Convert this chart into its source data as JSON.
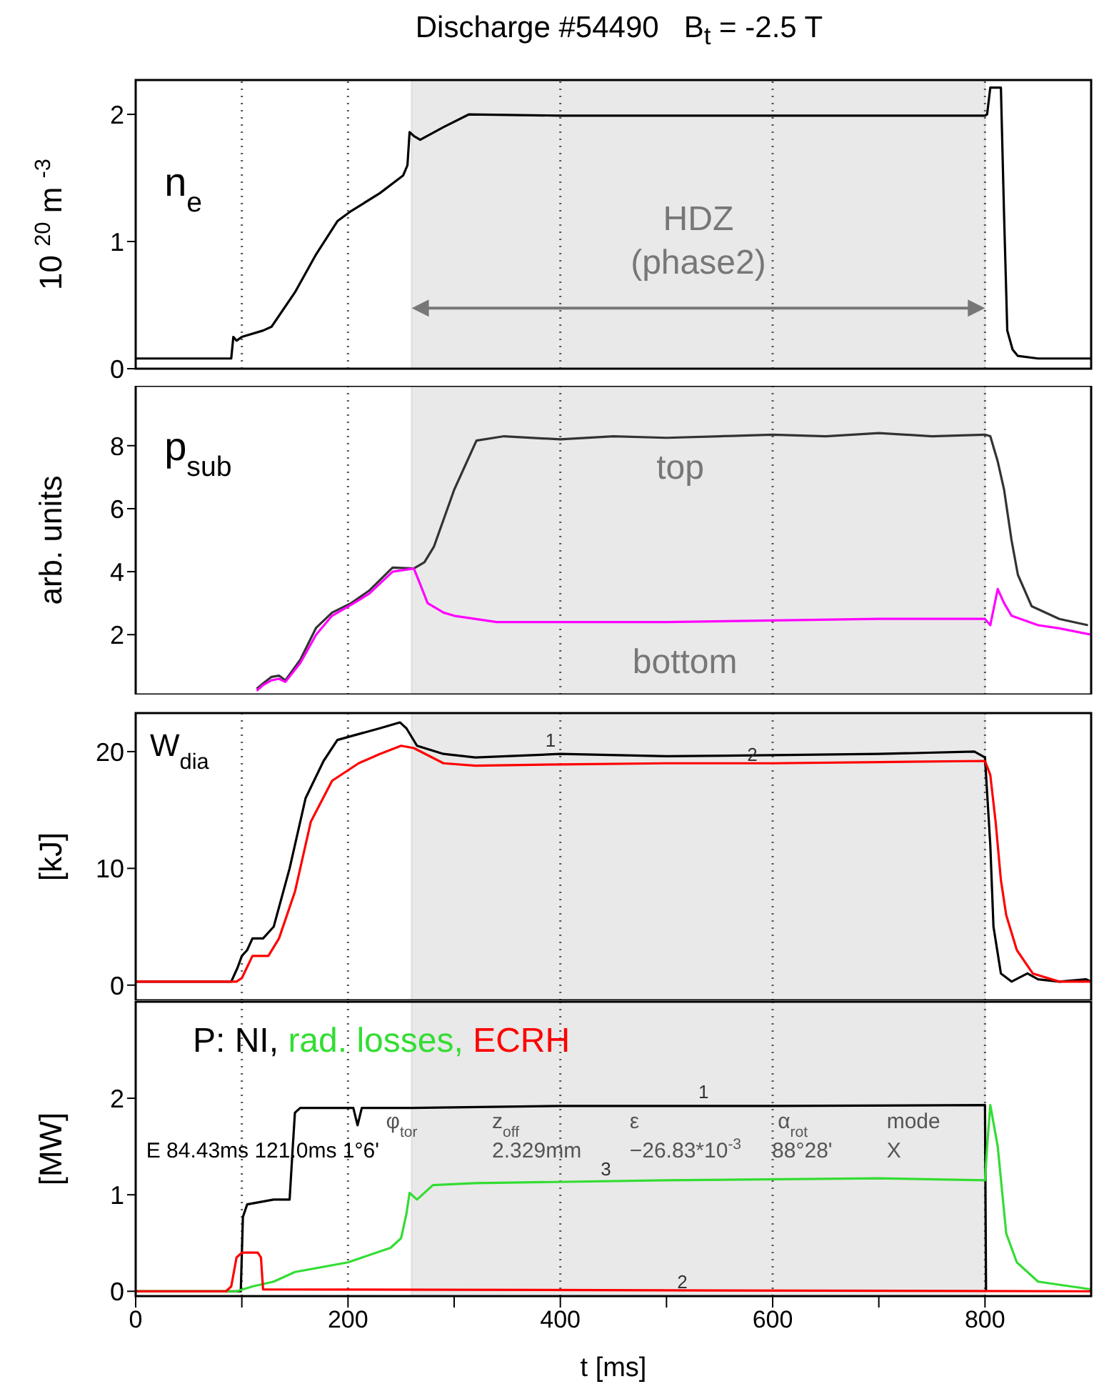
{
  "chart_data": [
    {
      "type": "line",
      "title": "Discharge #54490   B$_{t}$ = -2.5 T",
      "annotations": [
        "n$_{e}$"
      ],
      "ylabel": "10 $^{20}$ m $^{-3}$",
      "xlim": [
        0,
        900
      ],
      "ylim": [
        0,
        2.27
      ],
      "yticks": [
        0,
        1,
        2
      ],
      "tick_labels": "y",
      "series": [
        {
          "color": "#000000",
          "x": [
            0,
            50,
            90,
            92,
            95,
            100,
            120,
            128,
            150,
            170,
            190,
            203,
            230,
            252,
            256,
            258,
            262,
            268,
            290,
            314,
            400,
            500,
            600,
            700,
            800,
            802,
            805,
            815,
            818,
            821,
            826,
            831,
            850,
            900
          ],
          "values": [
            0.08,
            0.08,
            0.08,
            0.25,
            0.22,
            0.25,
            0.3,
            0.33,
            0.6,
            0.9,
            1.16,
            1.24,
            1.38,
            1.52,
            1.6,
            1.86,
            1.83,
            1.8,
            1.9,
            2.0,
            1.99,
            1.99,
            1.99,
            1.99,
            1.99,
            2.0,
            2.21,
            2.21,
            1.2,
            0.3,
            0.15,
            0.1,
            0.08,
            0.08
          ]
        }
      ],
      "bands": [
        {
          "axis": "x",
          "from": 260,
          "to": 800,
          "label": "HDZ (phase2)",
          "color": "#e9e9e9"
        }
      ],
      "ref_lines": [
        {
          "axis": "x",
          "value": 100,
          "line_style": "dotted"
        },
        {
          "axis": "x",
          "value": 200,
          "line_style": "dotted"
        },
        {
          "axis": "x",
          "value": 400,
          "line_style": "dotted"
        },
        {
          "axis": "x",
          "value": 600,
          "line_style": "dotted"
        },
        {
          "axis": "x",
          "value": 800,
          "line_style": "dotted"
        }
      ]
    },
    {
      "type": "line",
      "ylabel": "arb. units",
      "xlim": [
        0,
        900
      ],
      "ylim": [
        0.1,
        9.9
      ],
      "yticks": [
        2,
        4,
        6,
        8
      ],
      "tick_labels": "y",
      "series": [
        {
          "color": "#333333",
          "x": [
            114,
            120,
            128,
            135,
            141,
            155,
            170,
            185,
            203,
            220,
            242,
            262,
            272,
            281,
            300,
            321,
            347,
            400,
            450,
            500,
            550,
            600,
            650,
            700,
            750,
            800,
            805,
            812,
            818,
            825,
            831,
            844,
            870,
            897
          ],
          "values": [
            0.28,
            0.45,
            0.66,
            0.7,
            0.55,
            1.2,
            2.22,
            2.7,
            3.0,
            3.4,
            4.13,
            4.1,
            4.3,
            4.8,
            6.6,
            8.16,
            8.3,
            8.2,
            8.3,
            8.25,
            8.3,
            8.35,
            8.3,
            8.4,
            8.3,
            8.35,
            8.3,
            7.5,
            6.6,
            5.0,
            3.9,
            2.9,
            2.5,
            2.3
          ]
        },
        {
          "color": "#ff00ff",
          "x": [
            114,
            120,
            128,
            135,
            141,
            155,
            170,
            185,
            203,
            220,
            242,
            262,
            268,
            275,
            290,
            300,
            340,
            400,
            500,
            600,
            700,
            800,
            805,
            812,
            818,
            825,
            850,
            870,
            900
          ],
          "values": [
            0.22,
            0.4,
            0.55,
            0.6,
            0.5,
            1.1,
            2.0,
            2.6,
            2.95,
            3.3,
            4.0,
            4.1,
            3.6,
            3.0,
            2.7,
            2.6,
            2.4,
            2.4,
            2.4,
            2.45,
            2.5,
            2.5,
            2.3,
            3.45,
            3.0,
            2.6,
            2.3,
            2.2,
            2.0
          ]
        }
      ],
      "annotations": [
        "p$_{sub}$",
        "top",
        "bottom"
      ],
      "bands": [
        {
          "axis": "x",
          "from": 260,
          "to": 800,
          "color": "#e9e9e9"
        }
      ],
      "ref_lines": [
        {
          "axis": "x",
          "value": 200,
          "line_style": "dotted"
        },
        {
          "axis": "x",
          "value": 400,
          "line_style": "dotted"
        },
        {
          "axis": "x",
          "value": 600,
          "line_style": "dotted"
        },
        {
          "axis": "x",
          "value": 800,
          "line_style": "dotted"
        }
      ]
    },
    {
      "type": "line",
      "ylabel": "[kJ]",
      "xlim": [
        0,
        900
      ],
      "ylim": [
        -1.3,
        23.3
      ],
      "yticks": [
        0,
        10,
        20
      ],
      "tick_labels": "y",
      "series": [
        {
          "color": "#000000",
          "x": [
            0,
            50,
            90,
            96,
            100,
            105,
            110,
            120,
            130,
            145,
            160,
            177,
            190,
            210,
            230,
            249,
            255,
            265,
            290,
            320,
            400,
            500,
            600,
            700,
            790,
            800,
            805,
            808,
            815,
            825,
            840,
            850,
            870,
            895,
            900
          ],
          "values": [
            0.3,
            0.3,
            0.3,
            1.5,
            2.5,
            3,
            4,
            4,
            5,
            10,
            16,
            19.2,
            21,
            21.5,
            22,
            22.5,
            22,
            20.5,
            19.8,
            19.5,
            19.8,
            19.6,
            19.7,
            19.8,
            20,
            19.5,
            12,
            5,
            1,
            0.3,
            1,
            0.5,
            0.3,
            0.5,
            0.3
          ]
        },
        {
          "color": "#ff0000",
          "x": [
            0,
            50,
            95,
            100,
            110,
            125,
            135,
            150,
            165,
            185,
            210,
            230,
            250,
            262,
            290,
            320,
            400,
            500,
            600,
            700,
            800,
            805,
            810,
            815,
            820,
            830,
            845,
            870,
            900
          ],
          "values": [
            0.3,
            0.3,
            0.3,
            0.6,
            2.5,
            2.5,
            4,
            8,
            14,
            17.5,
            19,
            19.8,
            20.5,
            20.3,
            19,
            18.8,
            18.9,
            19,
            19,
            19.1,
            19.2,
            18,
            14,
            9,
            6,
            3,
            1,
            0.3,
            0.3
          ]
        }
      ],
      "annotations": [
        "W$_{dia}$",
        {
          "text": "1",
          "x": 386,
          "y": 20.4
        },
        {
          "text": "2",
          "x": 576,
          "y": 19.2
        }
      ],
      "bands": [
        {
          "axis": "x",
          "from": 260,
          "to": 800,
          "color": "#e9e9e9"
        }
      ],
      "ref_lines": [
        {
          "axis": "x",
          "value": 100,
          "line_style": "dotted"
        },
        {
          "axis": "x",
          "value": 200,
          "line_style": "dotted"
        },
        {
          "axis": "x",
          "value": 400,
          "line_style": "dotted"
        },
        {
          "axis": "x",
          "value": 600,
          "line_style": "dotted"
        },
        {
          "axis": "x",
          "value": 800,
          "line_style": "dotted"
        }
      ]
    },
    {
      "type": "line",
      "ylabel": "[MW]",
      "xlabel": "t [ms]",
      "xlim": [
        0,
        900
      ],
      "ylim": [
        -0.05,
        3.0
      ],
      "yticks": [
        0,
        1,
        2
      ],
      "xticks": [
        0,
        {
          "value": 100,
          "label": null
        },
        200,
        {
          "value": 300,
          "label": null
        },
        400,
        {
          "value": 500,
          "label": null
        },
        600,
        {
          "value": 700,
          "label": null
        },
        800
      ],
      "legend": "top left",
      "legend_title": "P:",
      "series": [
        {
          "name": "NI,",
          "color": "#000000",
          "x": [
            0,
            95,
            99,
            101,
            105,
            130,
            145,
            148,
            150,
            155,
            205,
            209,
            213,
            260,
            400,
            600,
            800,
            801
          ],
          "values": [
            0,
            0,
            0,
            0.77,
            0.9,
            0.95,
            0.95,
            1.5,
            1.85,
            1.9,
            1.9,
            1.72,
            1.9,
            1.9,
            1.92,
            1.92,
            1.93,
            0
          ]
        },
        {
          "name": "rad. losses,",
          "color": "#33dd33",
          "x": [
            0,
            95,
            110,
            130,
            150,
            200,
            240,
            250,
            255,
            258,
            265,
            280,
            320,
            500,
            700,
            800,
            802,
            805,
            812,
            820,
            830,
            850,
            900
          ],
          "values": [
            0,
            0,
            0.05,
            0.1,
            0.2,
            0.3,
            0.45,
            0.55,
            0.8,
            1.02,
            0.95,
            1.1,
            1.12,
            1.15,
            1.17,
            1.15,
            1.5,
            1.93,
            1.5,
            0.6,
            0.3,
            0.1,
            0.02
          ]
        },
        {
          "name": "ECRH",
          "color": "#ff0000",
          "x": [
            0,
            85,
            90,
            95,
            100,
            115,
            118,
            120,
            900
          ],
          "values": [
            0,
            0,
            0.05,
            0.35,
            0.4,
            0.4,
            0.35,
            0.02,
            0
          ]
        }
      ],
      "annotations": [
        "E 84.43ms 121.0ms 1°6'",
        "φ$_{tor}$",
        "z$_{off}$",
        "2.329mm",
        "ε",
        "−26.83*10$^{-3}$",
        "α$_{rot}$",
        "88°28'",
        "mode",
        "X",
        {
          "text": "1",
          "x": 530,
          "y": 2.0
        },
        {
          "text": "3",
          "x": 438,
          "y": 1.2
        },
        {
          "text": "2",
          "x": 510,
          "y": 0.03
        }
      ],
      "bands": [
        {
          "axis": "x",
          "from": 260,
          "to": 800,
          "color": "#e9e9e9"
        }
      ],
      "ref_lines": [
        {
          "axis": "x",
          "value": 100,
          "line_style": "dotted"
        },
        {
          "axis": "x",
          "value": 200,
          "line_style": "dotted"
        },
        {
          "axis": "x",
          "value": 400,
          "line_style": "dotted"
        },
        {
          "axis": "x",
          "value": 600,
          "line_style": "dotted"
        },
        {
          "axis": "x",
          "value": 800,
          "line_style": "dotted"
        }
      ]
    }
  ]
}
